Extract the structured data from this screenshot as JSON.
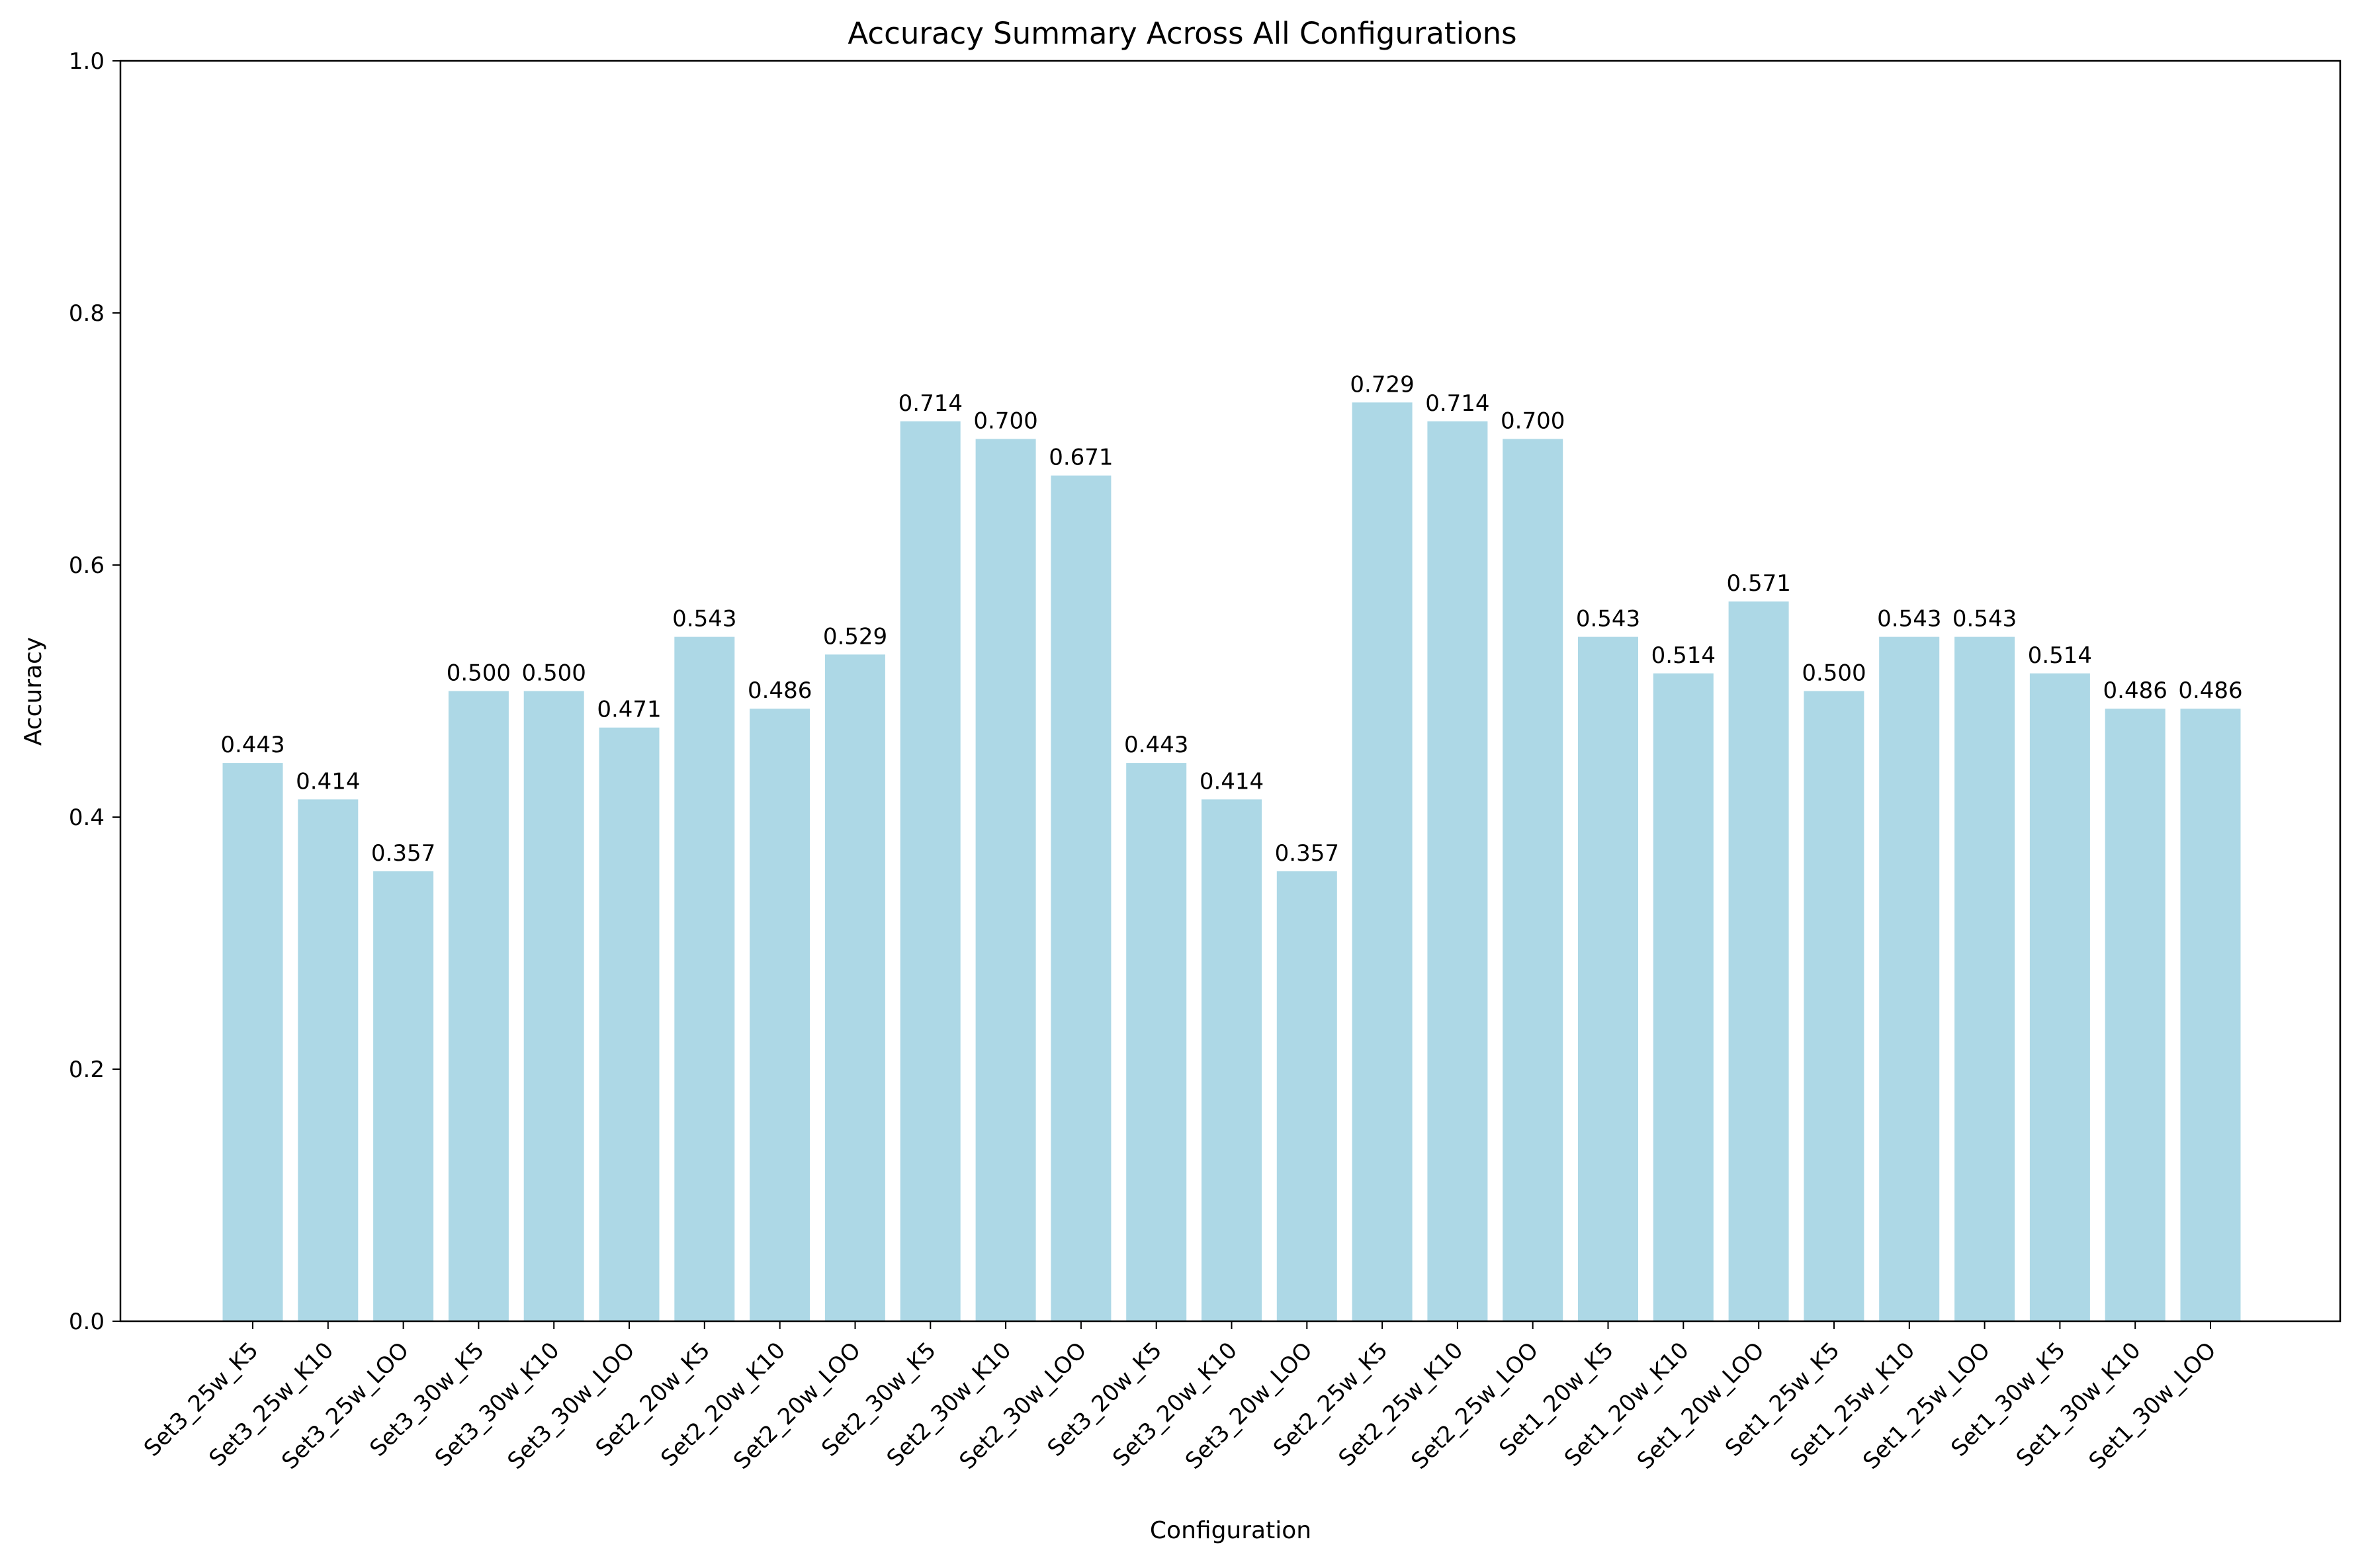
{
  "chart_data": {
    "type": "bar",
    "title": "Accuracy Summary Across All Configurations",
    "xlabel": "Configuration",
    "ylabel": "Accuracy",
    "ylim": [
      0,
      1.0
    ],
    "yticks": [
      "0.0",
      "0.2",
      "0.4",
      "0.6",
      "0.8",
      "1.0"
    ],
    "grid": false,
    "legend": "none",
    "bar_color": "#add8e6",
    "categories": [
      "Set3_25w_K5",
      "Set3_25w_K10",
      "Set3_25w_LOO",
      "Set3_30w_K5",
      "Set3_30w_K10",
      "Set3_30w_LOO",
      "Set2_20w_K5",
      "Set2_20w_K10",
      "Set2_20w_LOO",
      "Set2_30w_K5",
      "Set2_30w_K10",
      "Set2_30w_LOO",
      "Set3_20w_K5",
      "Set3_20w_K10",
      "Set3_20w_LOO",
      "Set2_25w_K5",
      "Set2_25w_K10",
      "Set2_25w_LOO",
      "Set1_20w_K5",
      "Set1_20w_K10",
      "Set1_20w_LOO",
      "Set1_25w_K5",
      "Set1_25w_K10",
      "Set1_25w_LOO",
      "Set1_30w_K5",
      "Set1_30w_K10",
      "Set1_30w_LOO"
    ],
    "values": [
      0.443,
      0.414,
      0.357,
      0.5,
      0.5,
      0.471,
      0.543,
      0.486,
      0.529,
      0.714,
      0.7,
      0.671,
      0.443,
      0.414,
      0.357,
      0.729,
      0.714,
      0.7,
      0.543,
      0.514,
      0.571,
      0.5,
      0.543,
      0.543,
      0.514,
      0.486,
      0.486
    ],
    "data_labels": [
      "0.443",
      "0.414",
      "0.357",
      "0.500",
      "0.500",
      "0.471",
      "0.543",
      "0.486",
      "0.529",
      "0.714",
      "0.700",
      "0.671",
      "0.443",
      "0.414",
      "0.357",
      "0.729",
      "0.714",
      "0.700",
      "0.543",
      "0.514",
      "0.571",
      "0.500",
      "0.543",
      "0.543",
      "0.514",
      "0.486",
      "0.486"
    ]
  }
}
